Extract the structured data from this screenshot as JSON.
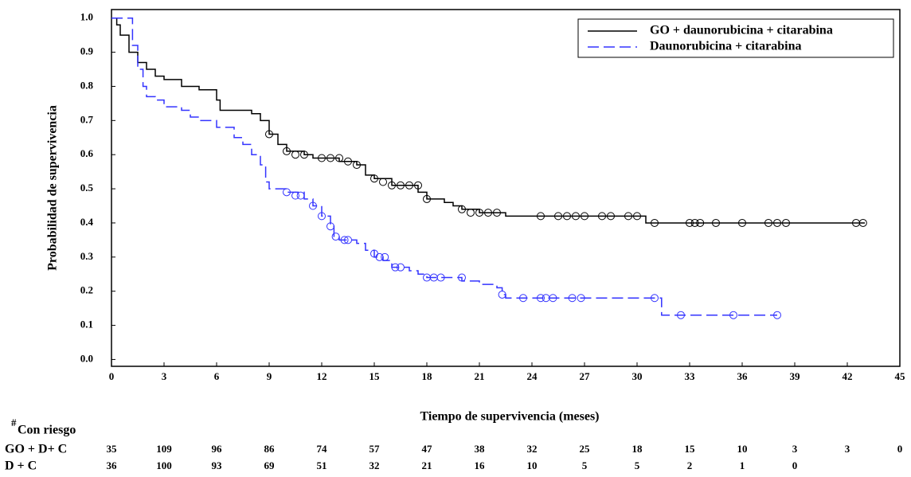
{
  "chart_data": {
    "type": "step",
    "y_label": "Probabilidad de supervivencia",
    "x_label": "Tiempo de supervivencia (meses)",
    "xlim": [
      0,
      45
    ],
    "xticks": [
      0,
      3,
      6,
      9,
      12,
      15,
      18,
      21,
      24,
      27,
      30,
      33,
      36,
      39,
      42,
      45
    ],
    "ylim": [
      -0.02,
      1.025
    ],
    "yticks": [
      {
        "value": 0,
        "label": "0.0"
      },
      0.1,
      0.2,
      0.3,
      0.4,
      0.5,
      0.6,
      0.7,
      0.8,
      0.9,
      {
        "value": 1,
        "label": "1.0"
      }
    ],
    "legend": "upper right",
    "series": [
      {
        "name": "GO + daunorubicina + citarabina",
        "color": "#000000",
        "dash": false,
        "x": [
          0,
          0.3,
          0.5,
          1,
          1.5,
          2,
          2.5,
          3,
          4,
          5,
          6,
          6.2,
          8,
          8.5,
          9,
          9.5,
          10,
          11,
          11.5,
          13,
          14,
          14.5,
          15,
          16,
          17.5,
          18,
          19,
          19.5,
          20,
          21,
          22.5,
          30.5,
          43
        ],
        "values": [
          1.0,
          0.98,
          0.95,
          0.9,
          0.87,
          0.85,
          0.83,
          0.82,
          0.8,
          0.79,
          0.76,
          0.73,
          0.72,
          0.7,
          0.66,
          0.63,
          0.61,
          0.6,
          0.59,
          0.58,
          0.57,
          0.54,
          0.53,
          0.51,
          0.49,
          0.47,
          0.46,
          0.45,
          0.44,
          0.43,
          0.42,
          0.4,
          0.4
        ],
        "censor_x": [
          9,
          10,
          10.5,
          11,
          12,
          12.5,
          13,
          13.5,
          14,
          15,
          15.5,
          16,
          16.5,
          17,
          17.5,
          18,
          20,
          20.5,
          21,
          21.5,
          22,
          24.5,
          25.5,
          26,
          26.5,
          27,
          28,
          28.5,
          29.5,
          30,
          31,
          33,
          33.3,
          33.6,
          34.5,
          36,
          37.5,
          38,
          38.5,
          42.5,
          42.9
        ],
        "censor_y": [
          0.66,
          0.61,
          0.6,
          0.6,
          0.59,
          0.59,
          0.59,
          0.58,
          0.57,
          0.53,
          0.52,
          0.51,
          0.51,
          0.51,
          0.51,
          0.47,
          0.44,
          0.43,
          0.43,
          0.43,
          0.43,
          0.42,
          0.42,
          0.42,
          0.42,
          0.42,
          0.42,
          0.42,
          0.42,
          0.42,
          0.4,
          0.4,
          0.4,
          0.4,
          0.4,
          0.4,
          0.4,
          0.4,
          0.4,
          0.4,
          0.4
        ]
      },
      {
        "name": "Daunorubicina + citarabina",
        "color": "#3333ff",
        "dash": true,
        "x": [
          0,
          1.2,
          1.5,
          1.8,
          2,
          2.5,
          3,
          4,
          4.5,
          5,
          6,
          7,
          7.5,
          8,
          8.5,
          8.8,
          9,
          10,
          11,
          11.5,
          12,
          12.5,
          12.7,
          13,
          14,
          14.5,
          15,
          15.5,
          16,
          17,
          17.5,
          18,
          20,
          21,
          22,
          22.3,
          22.5,
          31.4,
          38
        ],
        "values": [
          1.0,
          0.92,
          0.85,
          0.8,
          0.77,
          0.76,
          0.74,
          0.73,
          0.71,
          0.7,
          0.68,
          0.65,
          0.63,
          0.6,
          0.57,
          0.52,
          0.5,
          0.49,
          0.47,
          0.45,
          0.42,
          0.39,
          0.36,
          0.35,
          0.34,
          0.32,
          0.3,
          0.29,
          0.27,
          0.26,
          0.25,
          0.24,
          0.23,
          0.22,
          0.21,
          0.19,
          0.18,
          0.13,
          0.13
        ],
        "censor_x": [
          10,
          10.5,
          10.8,
          11.5,
          12,
          12.5,
          12.8,
          13.3,
          13.5,
          15,
          15.3,
          15.6,
          16.2,
          16.5,
          18,
          18.4,
          18.8,
          20,
          22.3,
          23.5,
          24.5,
          24.8,
          25.2,
          26.3,
          26.8,
          31,
          32.5,
          35.5,
          38
        ],
        "censor_y": [
          0.49,
          0.48,
          0.48,
          0.45,
          0.42,
          0.39,
          0.36,
          0.35,
          0.35,
          0.31,
          0.3,
          0.3,
          0.27,
          0.27,
          0.24,
          0.24,
          0.24,
          0.24,
          0.19,
          0.18,
          0.18,
          0.18,
          0.18,
          0.18,
          0.18,
          0.18,
          0.13,
          0.13,
          0.13
        ]
      }
    ],
    "at_risk_marker": "#",
    "at_risk_title": "Con riesgo",
    "at_risk": [
      {
        "name": "GO + D+ C",
        "values": [
          35,
          109,
          96,
          86,
          74,
          57,
          47,
          38,
          32,
          25,
          18,
          15,
          10,
          3,
          3,
          0
        ]
      },
      {
        "name": "D + C",
        "values": [
          36,
          100,
          93,
          69,
          51,
          32,
          21,
          16,
          10,
          5,
          5,
          2,
          1,
          0
        ]
      }
    ]
  }
}
